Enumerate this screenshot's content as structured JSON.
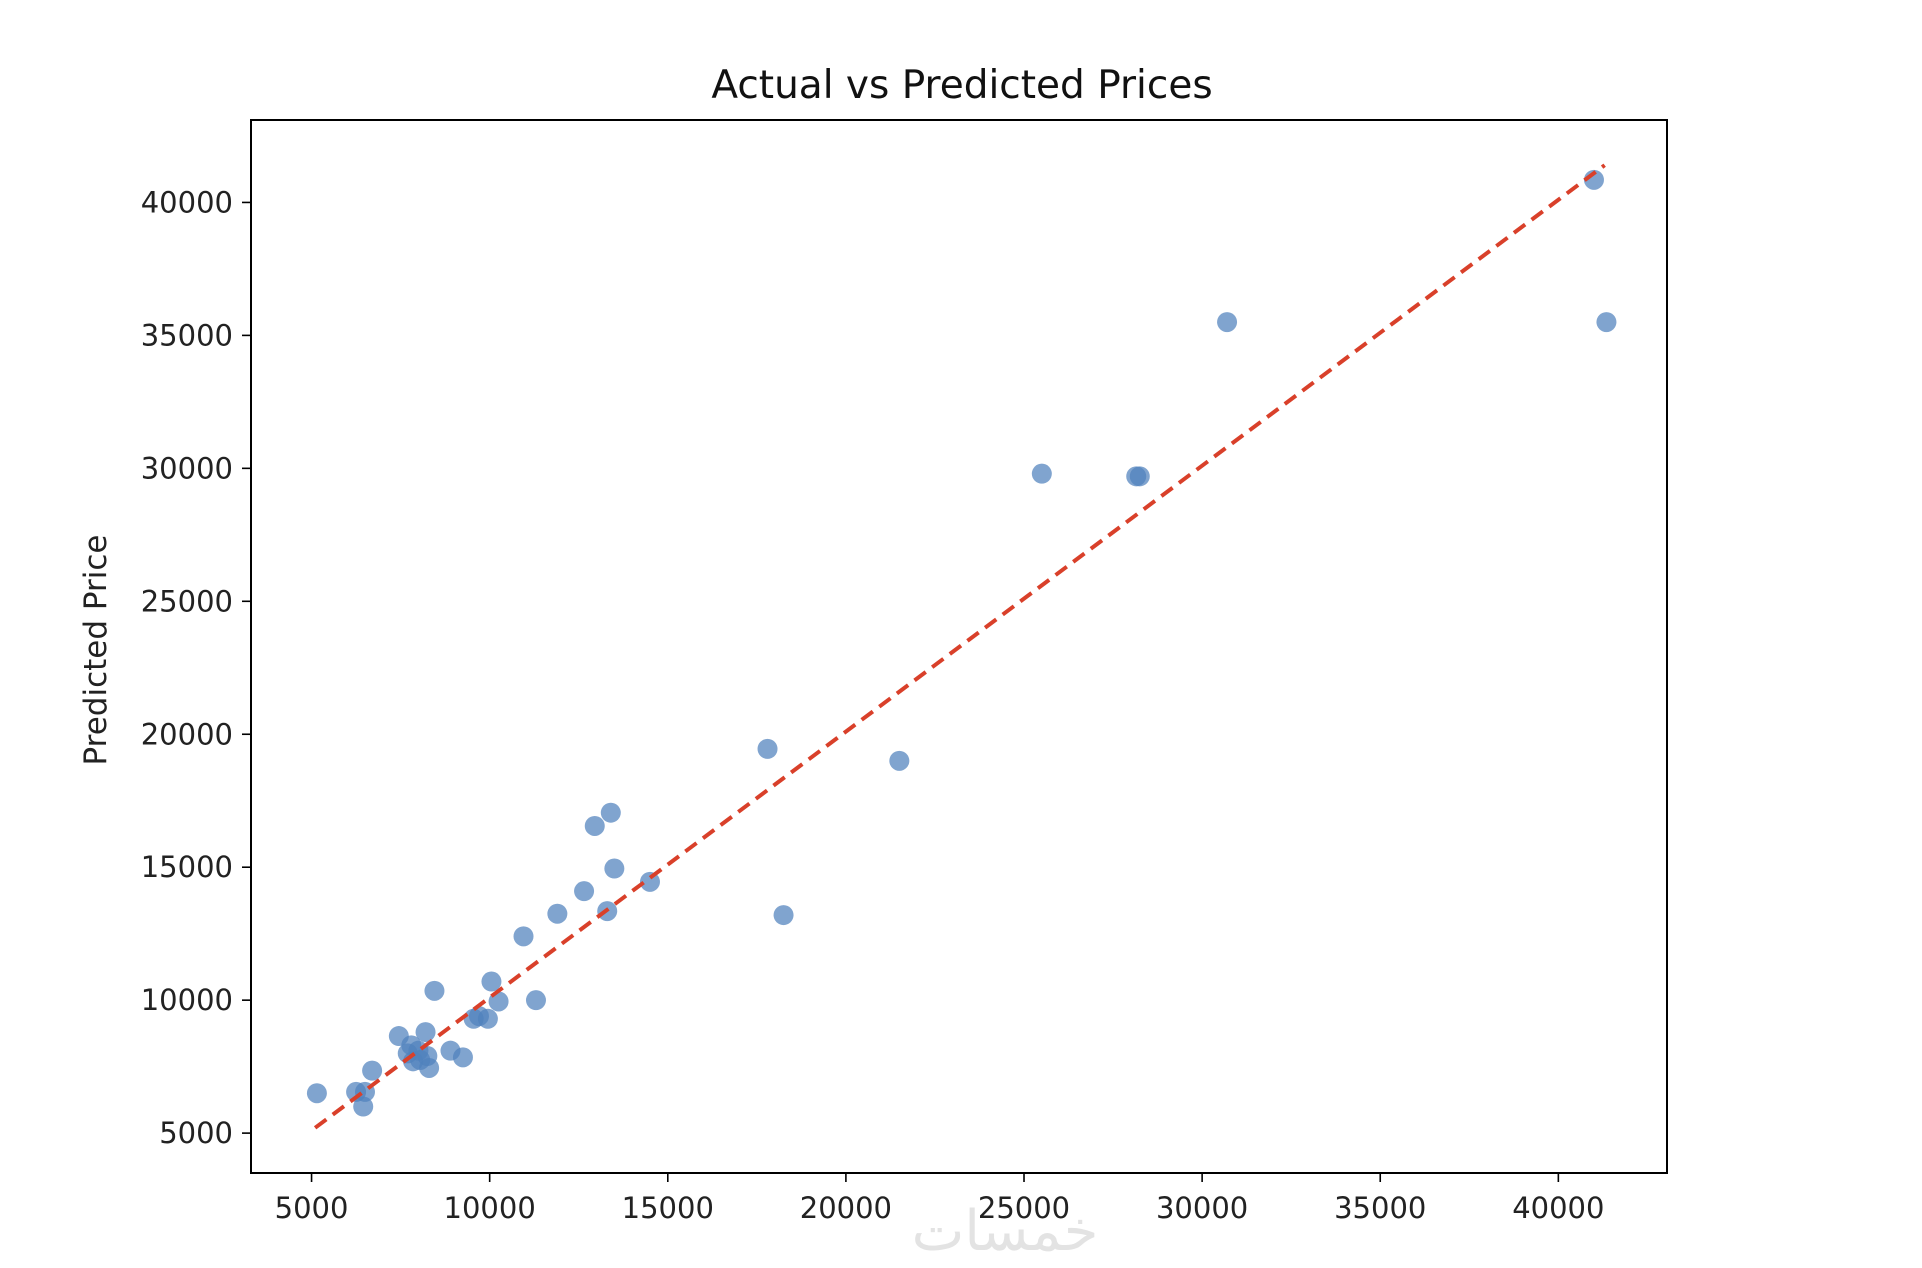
{
  "chart_data": {
    "type": "scatter",
    "title": "Actual vs Predicted Prices",
    "xlabel": "",
    "ylabel": "Predicted Price",
    "xlim": [
      3300,
      43050
    ],
    "ylim": [
      3500,
      43100
    ],
    "xticks": [
      5000,
      10000,
      15000,
      20000,
      25000,
      30000,
      35000,
      40000
    ],
    "yticks": [
      5000,
      10000,
      15000,
      20000,
      25000,
      30000,
      35000,
      40000
    ],
    "grid": false,
    "point_color": "#4f81bd",
    "reference_line": {
      "x": [
        5100,
        41300
      ],
      "y": [
        5200,
        41400
      ],
      "color": "#d9402a",
      "style": "dashed"
    },
    "points": [
      {
        "x": 5150,
        "y": 6500
      },
      {
        "x": 6250,
        "y": 6550
      },
      {
        "x": 6450,
        "y": 6000
      },
      {
        "x": 6500,
        "y": 6550
      },
      {
        "x": 6700,
        "y": 7350
      },
      {
        "x": 7450,
        "y": 8650
      },
      {
        "x": 7700,
        "y": 8000
      },
      {
        "x": 7800,
        "y": 8300
      },
      {
        "x": 7850,
        "y": 7700
      },
      {
        "x": 8000,
        "y": 8100
      },
      {
        "x": 8050,
        "y": 7750
      },
      {
        "x": 8200,
        "y": 8800
      },
      {
        "x": 8250,
        "y": 7900
      },
      {
        "x": 8300,
        "y": 7450
      },
      {
        "x": 8450,
        "y": 10350
      },
      {
        "x": 8900,
        "y": 8100
      },
      {
        "x": 9250,
        "y": 7850
      },
      {
        "x": 9550,
        "y": 9300
      },
      {
        "x": 9700,
        "y": 9400
      },
      {
        "x": 9950,
        "y": 9300
      },
      {
        "x": 10050,
        "y": 10700
      },
      {
        "x": 10250,
        "y": 9950
      },
      {
        "x": 10950,
        "y": 12400
      },
      {
        "x": 11300,
        "y": 10000
      },
      {
        "x": 11900,
        "y": 13250
      },
      {
        "x": 12650,
        "y": 14100
      },
      {
        "x": 12950,
        "y": 16550
      },
      {
        "x": 13300,
        "y": 13350
      },
      {
        "x": 13400,
        "y": 17050
      },
      {
        "x": 13500,
        "y": 14950
      },
      {
        "x": 14500,
        "y": 14450
      },
      {
        "x": 17800,
        "y": 19450
      },
      {
        "x": 18250,
        "y": 13200
      },
      {
        "x": 21500,
        "y": 19000
      },
      {
        "x": 25500,
        "y": 29800
      },
      {
        "x": 28150,
        "y": 29700
      },
      {
        "x": 28250,
        "y": 29700
      },
      {
        "x": 30700,
        "y": 35500
      },
      {
        "x": 41000,
        "y": 40850
      },
      {
        "x": 41350,
        "y": 35500
      }
    ]
  },
  "watermark": "خمسات"
}
